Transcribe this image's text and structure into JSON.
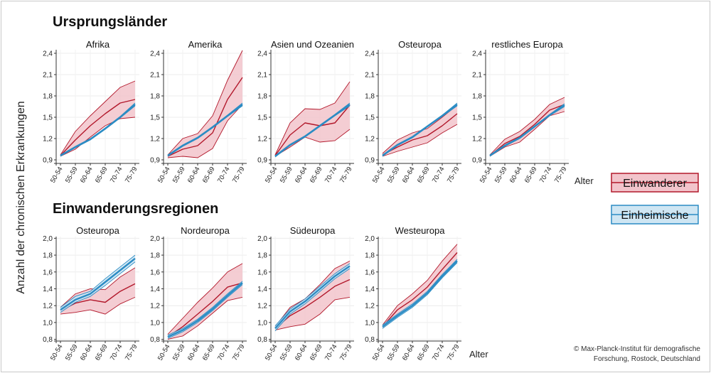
{
  "figure": {
    "y_axis_label": "Anzahl der chronischen Erkrankungen",
    "x_axis_label": "Alter",
    "credit": [
      "© Max-Planck-Institut für demografische",
      "Forschung, Rostock, Deutschland"
    ],
    "colors": {
      "immigrant_line": "#b2182b",
      "immigrant_band": "#f2c4cb",
      "native_line": "#2b8cc4",
      "native_band": "#cfe6f3"
    },
    "legend": [
      {
        "label": "Einwanderer",
        "series": "immigrant"
      },
      {
        "label": "Einheimische",
        "series": "native"
      }
    ]
  },
  "chart_data": [
    {
      "type": "line",
      "section": "Ursprungsländer",
      "ylim": [
        0.85,
        2.45
      ],
      "yticks": [
        "0,9",
        "1,2",
        "1,5",
        "1,8",
        "2,1",
        "2,4"
      ],
      "ytick_values": [
        0.9,
        1.2,
        1.5,
        1.8,
        2.1,
        2.4
      ],
      "categories": [
        "50-54",
        "55-59",
        "60-64",
        "65-69",
        "70-74",
        "75-79"
      ],
      "panels": [
        {
          "title": "Afrika",
          "immigrant": {
            "mid": [
              0.96,
              1.18,
              1.38,
              1.55,
              1.7,
              1.75
            ],
            "lo": [
              0.95,
              1.05,
              1.22,
              1.38,
              1.48,
              1.5
            ],
            "hi": [
              0.97,
              1.3,
              1.52,
              1.72,
              1.92,
              2.01
            ]
          },
          "native": {
            "mid": [
              0.96,
              1.08,
              1.19,
              1.34,
              1.5,
              1.68
            ],
            "lo": [
              0.95,
              1.07,
              1.18,
              1.33,
              1.49,
              1.66
            ],
            "hi": [
              0.97,
              1.09,
              1.2,
              1.35,
              1.51,
              1.7
            ]
          }
        },
        {
          "title": "Amerika",
          "immigrant": {
            "mid": [
              0.95,
              1.05,
              1.1,
              1.28,
              1.75,
              2.06
            ],
            "lo": [
              0.93,
              0.95,
              0.93,
              1.06,
              1.45,
              1.68
            ],
            "hi": [
              0.97,
              1.2,
              1.27,
              1.52,
              2.02,
              2.44
            ]
          },
          "native": {
            "mid": [
              0.96,
              1.1,
              1.21,
              1.36,
              1.52,
              1.68
            ],
            "lo": [
              0.95,
              1.09,
              1.2,
              1.35,
              1.51,
              1.66
            ],
            "hi": [
              0.97,
              1.11,
              1.22,
              1.37,
              1.53,
              1.7
            ]
          }
        },
        {
          "title": "Asien und Ozeanien",
          "immigrant": {
            "mid": [
              0.96,
              1.25,
              1.42,
              1.38,
              1.42,
              1.67
            ],
            "lo": [
              0.95,
              1.08,
              1.22,
              1.15,
              1.17,
              1.33
            ],
            "hi": [
              0.97,
              1.42,
              1.62,
              1.61,
              1.7,
              2.0
            ]
          },
          "native": {
            "mid": [
              0.95,
              1.11,
              1.23,
              1.38,
              1.53,
              1.68
            ],
            "lo": [
              0.94,
              1.1,
              1.22,
              1.37,
              1.52,
              1.66
            ],
            "hi": [
              0.96,
              1.12,
              1.24,
              1.39,
              1.54,
              1.7
            ]
          }
        },
        {
          "title": "Osteuropa",
          "immigrant": {
            "mid": [
              0.97,
              1.08,
              1.18,
              1.24,
              1.38,
              1.55
            ],
            "lo": [
              0.95,
              1.02,
              1.08,
              1.14,
              1.28,
              1.4
            ],
            "hi": [
              0.99,
              1.18,
              1.28,
              1.34,
              1.5,
              1.67
            ]
          },
          "native": {
            "mid": [
              0.96,
              1.11,
              1.22,
              1.37,
              1.52,
              1.68
            ],
            "lo": [
              0.95,
              1.1,
              1.21,
              1.36,
              1.51,
              1.66
            ],
            "hi": [
              0.97,
              1.12,
              1.23,
              1.38,
              1.53,
              1.7
            ]
          }
        },
        {
          "title": "restliches Europa",
          "immigrant": {
            "mid": [
              0.96,
              1.13,
              1.23,
              1.4,
              1.6,
              1.68
            ],
            "lo": [
              0.95,
              1.08,
              1.15,
              1.33,
              1.52,
              1.58
            ],
            "hi": [
              0.97,
              1.19,
              1.3,
              1.47,
              1.68,
              1.78
            ]
          },
          "native": {
            "mid": [
              0.96,
              1.1,
              1.21,
              1.37,
              1.53,
              1.67
            ],
            "lo": [
              0.95,
              1.09,
              1.2,
              1.36,
              1.52,
              1.65
            ],
            "hi": [
              0.97,
              1.11,
              1.22,
              1.38,
              1.54,
              1.69
            ]
          }
        }
      ]
    },
    {
      "type": "line",
      "section": "Einwanderungsregionen",
      "ylim": [
        0.78,
        2.02
      ],
      "yticks": [
        "0,8",
        "1,0",
        "1,2",
        "1,4",
        "1,6",
        "1,8",
        "2,0"
      ],
      "ytick_values": [
        0.8,
        1.0,
        1.2,
        1.4,
        1.6,
        1.8,
        2.0
      ],
      "categories": [
        "50-54",
        "55-59",
        "60-64",
        "65-69",
        "70-74",
        "75-79"
      ],
      "panels": [
        {
          "title": "Osteuropa",
          "immigrant": {
            "mid": [
              1.14,
              1.23,
              1.27,
              1.24,
              1.37,
              1.46
            ],
            "lo": [
              1.1,
              1.12,
              1.15,
              1.1,
              1.22,
              1.3
            ],
            "hi": [
              1.18,
              1.34,
              1.4,
              1.39,
              1.54,
              1.65
            ]
          },
          "native": {
            "mid": [
              1.15,
              1.27,
              1.34,
              1.48,
              1.62,
              1.76
            ],
            "lo": [
              1.12,
              1.24,
              1.31,
              1.44,
              1.58,
              1.72
            ],
            "hi": [
              1.18,
              1.31,
              1.37,
              1.52,
              1.66,
              1.8
            ]
          }
        },
        {
          "title": "Nordeuropa",
          "immigrant": {
            "mid": [
              0.83,
              0.95,
              1.1,
              1.25,
              1.42,
              1.47
            ],
            "lo": [
              0.8,
              0.84,
              0.96,
              1.11,
              1.26,
              1.3
            ],
            "hi": [
              0.86,
              1.05,
              1.24,
              1.41,
              1.6,
              1.7
            ]
          },
          "native": {
            "mid": [
              0.83,
              0.91,
              1.02,
              1.16,
              1.32,
              1.47
            ],
            "lo": [
              0.81,
              0.89,
              1.0,
              1.14,
              1.3,
              1.45
            ],
            "hi": [
              0.85,
              0.93,
              1.04,
              1.18,
              1.34,
              1.49
            ]
          }
        },
        {
          "title": "Südeuropa",
          "immigrant": {
            "mid": [
              0.93,
              1.08,
              1.18,
              1.3,
              1.43,
              1.51
            ],
            "lo": [
              0.91,
              0.95,
              0.98,
              1.1,
              1.27,
              1.3
            ],
            "hi": [
              0.95,
              1.18,
              1.28,
              1.45,
              1.64,
              1.73
            ]
          },
          "native": {
            "mid": [
              0.93,
              1.13,
              1.25,
              1.4,
              1.55,
              1.67
            ],
            "lo": [
              0.9,
              1.1,
              1.22,
              1.37,
              1.52,
              1.64
            ],
            "hi": [
              0.96,
              1.16,
              1.28,
              1.43,
              1.58,
              1.7
            ]
          }
        },
        {
          "title": "Westeuropa",
          "immigrant": {
            "mid": [
              0.95,
              1.15,
              1.27,
              1.42,
              1.63,
              1.83
            ],
            "lo": [
              0.93,
              1.1,
              1.2,
              1.35,
              1.54,
              1.73
            ],
            "hi": [
              0.97,
              1.2,
              1.34,
              1.5,
              1.73,
              1.93
            ]
          },
          "native": {
            "mid": [
              0.95,
              1.08,
              1.2,
              1.35,
              1.55,
              1.73
            ],
            "lo": [
              0.93,
              1.06,
              1.18,
              1.33,
              1.53,
              1.71
            ],
            "hi": [
              0.97,
              1.1,
              1.22,
              1.37,
              1.57,
              1.75
            ]
          }
        }
      ]
    }
  ]
}
